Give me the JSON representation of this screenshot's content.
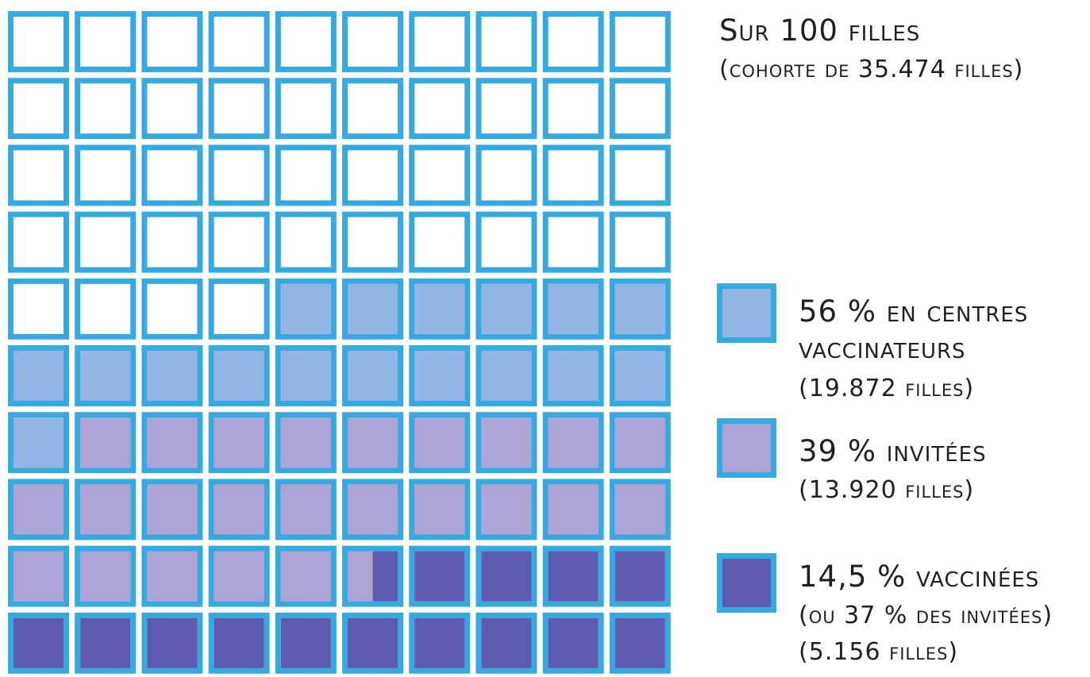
{
  "chart_data": {
    "type": "waffle",
    "title": "Sur 100 filles",
    "subtitle": "(cohorte de 35.474 filles)",
    "total": 100,
    "border_color": "#36a9e1",
    "series": [
      {
        "name": "56 % en centres vaccinateurs",
        "color": "#94b4e3",
        "values": [
          56
        ],
        "detail": "(19.872 filles)"
      },
      {
        "name": "39 % invitées",
        "color": "#ada3d4",
        "values": [
          39
        ],
        "detail": "(13.920 filles)"
      },
      {
        "name": "14,5 % vaccinées",
        "color": "#5d5bb0",
        "values": [
          14.5
        ],
        "note": "(ou 37 % des invitées)",
        "detail": "(5.156 filles)"
      }
    ]
  }
}
